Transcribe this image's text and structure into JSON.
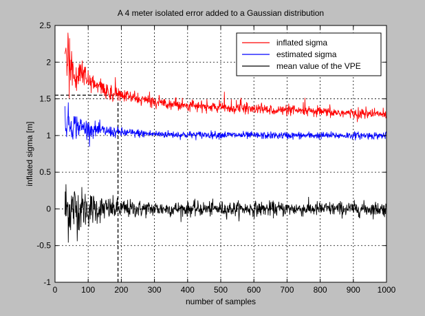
{
  "chart_data": {
    "type": "line",
    "title": "A 4 meter isolated error added to a Gaussian distribution",
    "xlabel": "number of samples",
    "ylabel": "inflated sigma [m]",
    "xlim": [
      0,
      1000
    ],
    "ylim": [
      -1,
      2.5
    ],
    "xticks": [
      "0",
      "100",
      "200",
      "300",
      "400",
      "500",
      "600",
      "700",
      "800",
      "900",
      "1000"
    ],
    "yticks": [
      "-1",
      "-0.5",
      "0",
      "0.5",
      "1",
      "1.5",
      "2",
      "2.5"
    ],
    "grid": true,
    "legend_position": "top-right",
    "series": [
      {
        "name": "inflated sigma",
        "color": "#ff0000",
        "x": [
          30,
          40,
          50,
          60,
          80,
          100,
          120,
          150,
          175,
          200,
          250,
          300,
          400,
          500,
          600,
          700,
          800,
          900,
          1000
        ],
        "values": [
          2.05,
          1.98,
          1.92,
          1.87,
          1.8,
          1.74,
          1.69,
          1.62,
          1.58,
          1.55,
          1.5,
          1.46,
          1.41,
          1.38,
          1.36,
          1.34,
          1.32,
          1.3,
          1.29
        ],
        "noise": 0.035
      },
      {
        "name": "estimated sigma",
        "color": "#0000ff",
        "x": [
          30,
          50,
          100,
          150,
          200,
          300,
          400,
          500,
          600,
          700,
          800,
          900,
          1000
        ],
        "values": [
          1.22,
          1.15,
          1.09,
          1.06,
          1.04,
          1.02,
          1.01,
          1.01,
          1.0,
          1.0,
          1.0,
          1.0,
          1.0
        ],
        "noise": 0.025
      },
      {
        "name": "mean value of the VPE",
        "color": "#000000",
        "x": [
          30,
          1000
        ],
        "values": [
          0,
          0
        ],
        "noise": 0.05
      }
    ],
    "reference_lines": [
      {
        "kind": "horizontal",
        "y": 1.55,
        "x_from": 0,
        "x_to": 190,
        "style": "dashed"
      },
      {
        "kind": "vertical",
        "x": 190,
        "y_from": -1,
        "y_to": 1.55,
        "style": "dashed"
      }
    ]
  }
}
